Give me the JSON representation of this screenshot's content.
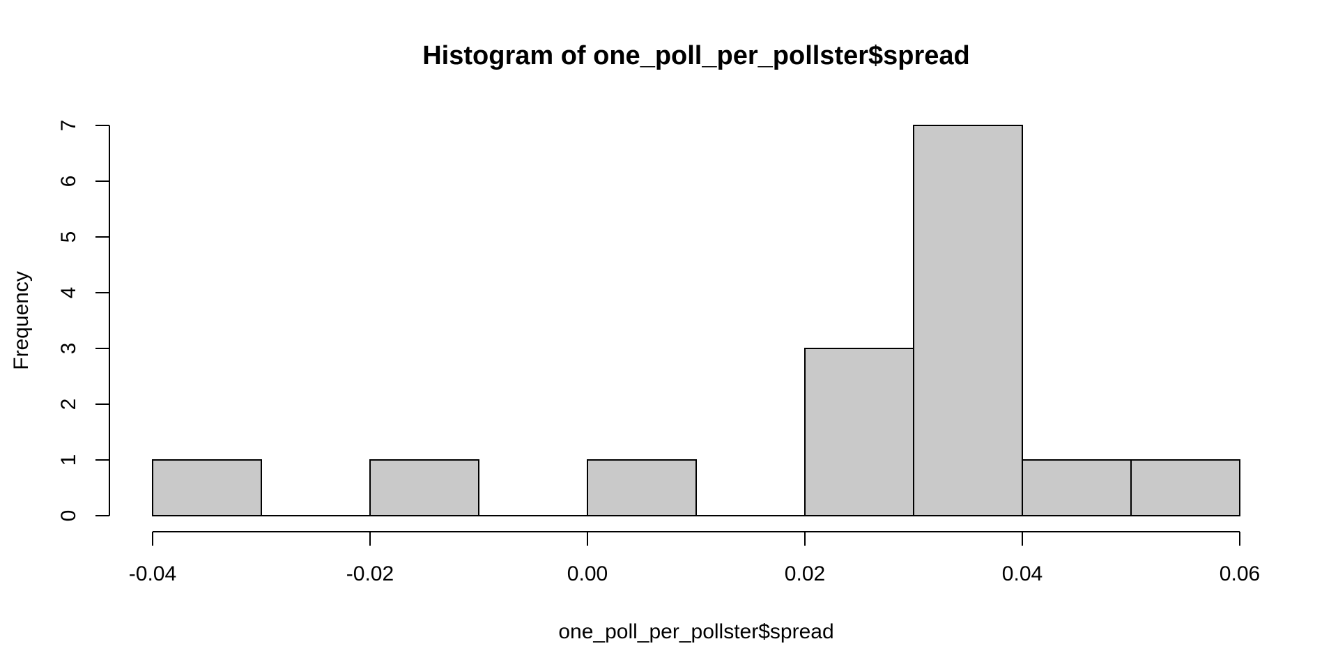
{
  "chart_data": {
    "type": "bar",
    "subtype": "histogram",
    "title": "Histogram of one_poll_per_pollster$spread",
    "xlabel": "one_poll_per_pollster$spread",
    "ylabel": "Frequency",
    "bin_edges": [
      -0.04,
      -0.03,
      -0.02,
      -0.01,
      0.0,
      0.01,
      0.02,
      0.03,
      0.04,
      0.05,
      0.06
    ],
    "counts": [
      1,
      0,
      1,
      0,
      1,
      0,
      3,
      7,
      1,
      1
    ],
    "x_ticks": [
      -0.04,
      -0.02,
      0.0,
      0.02,
      0.04,
      0.06
    ],
    "x_tick_labels": [
      "-0.04",
      "-0.02",
      "0.00",
      "0.02",
      "0.04",
      "0.06"
    ],
    "y_ticks": [
      0,
      1,
      2,
      3,
      4,
      5,
      6,
      7
    ],
    "y_tick_labels": [
      "0",
      "1",
      "2",
      "3",
      "4",
      "5",
      "6",
      "7"
    ],
    "xlim": [
      -0.04,
      0.06
    ],
    "ylim": [
      0,
      7
    ],
    "grid": false,
    "legend": null,
    "colors": {
      "bar_fill": "#C9C9C9",
      "bar_stroke": "#000000",
      "axis": "#000000",
      "text": "#000000",
      "background": "#FFFFFF"
    }
  }
}
